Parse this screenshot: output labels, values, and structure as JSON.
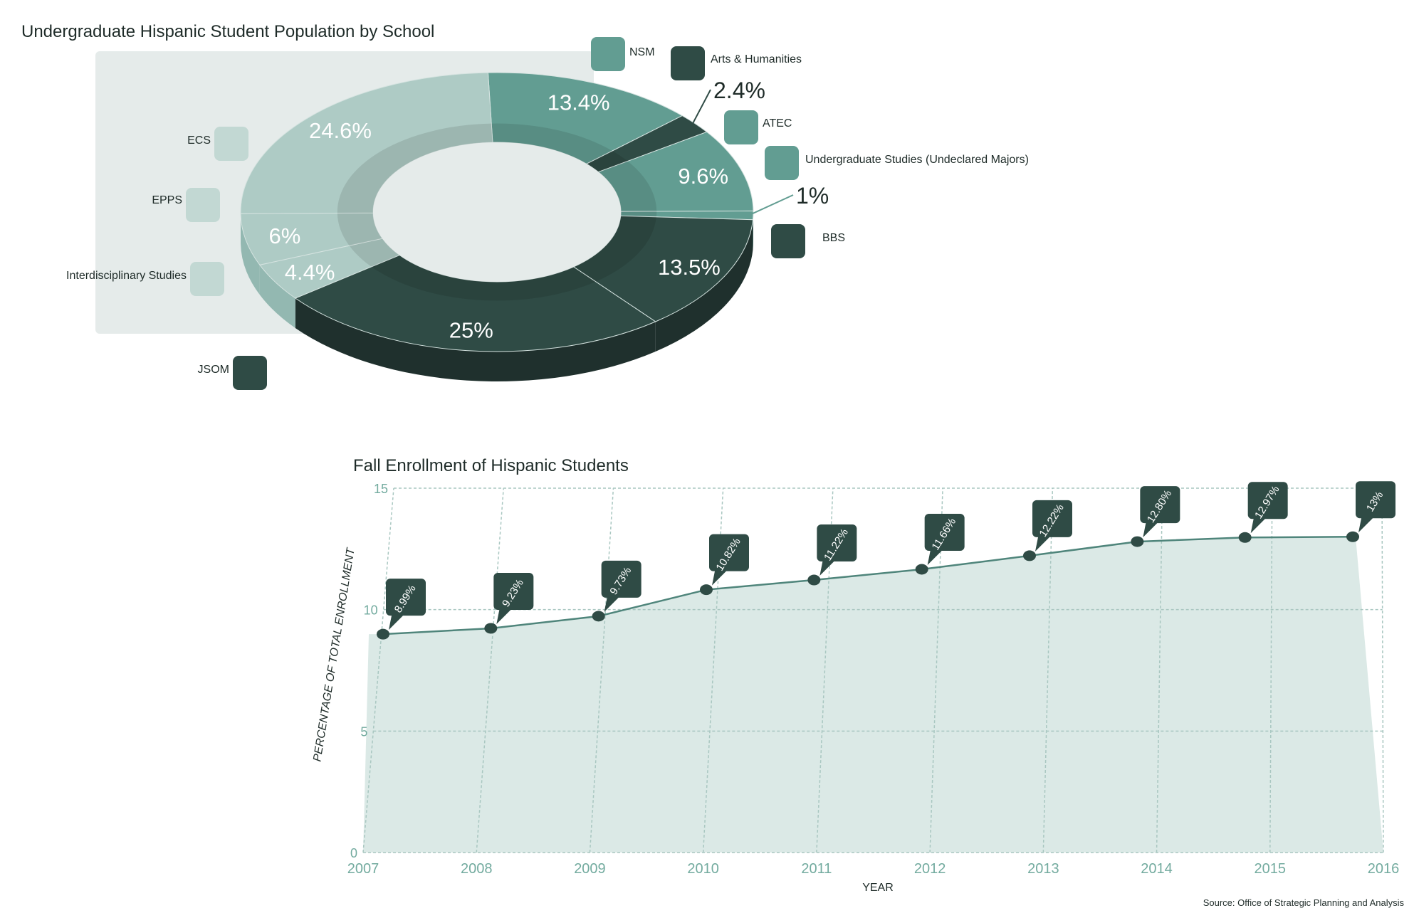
{
  "colors": {
    "dark": "#2f4b45",
    "dark_side": "#1f302d",
    "medium": "#629d92",
    "light": "#aecbc5",
    "lighter": "#c2d8d3",
    "panel": "#e5ebea",
    "area_fill": "#dbe9e6",
    "grid": "#a9c7c1",
    "axis_text": "#73ab9f",
    "text": "#1e2b28"
  },
  "chart_data": [
    {
      "type": "pie",
      "title": "Undergraduate Hispanic Student Population by School",
      "slices": [
        {
          "label": "NSM",
          "value": 13.4,
          "display": "13.4%",
          "tone": "medium"
        },
        {
          "label": "Arts & Humanities",
          "value": 2.4,
          "display": "2.4%",
          "tone": "dark"
        },
        {
          "label": "ATEC",
          "value": 9.6,
          "display": "9.6%",
          "tone": "medium"
        },
        {
          "label": "Undergraduate Studies (Undeclared Majors)",
          "value": 1,
          "display": "1%",
          "tone": "medium"
        },
        {
          "label": "BBS",
          "value": 13.5,
          "display": "13.5%",
          "tone": "dark"
        },
        {
          "label": "JSOM",
          "value": 25,
          "display": "25%",
          "tone": "dark"
        },
        {
          "label": "Interdisciplinary Studies",
          "value": 4.4,
          "display": "4.4%",
          "tone": "light"
        },
        {
          "label": "EPPS",
          "value": 6,
          "display": "6%",
          "tone": "light"
        },
        {
          "label": "ECS",
          "value": 24.6,
          "display": "24.6%",
          "tone": "light"
        }
      ],
      "legend_placement": "around"
    },
    {
      "type": "area",
      "title": "Fall Enrollment of Hispanic Students",
      "xlabel": "YEAR",
      "ylabel": "PERCENTAGE OF TOTAL ENROLLMENT",
      "ylim": [
        0,
        15
      ],
      "yticks": [
        0,
        5,
        10,
        15
      ],
      "xtick_labels": [
        "2007",
        "2008",
        "2009",
        "2010",
        "2011",
        "2012",
        "2013",
        "2014",
        "2015",
        "2016"
      ],
      "series": [
        {
          "x": [
            "2007",
            "2008",
            "2009",
            "2010",
            "2011",
            "2012",
            "2013",
            "2014",
            "2015",
            "2016"
          ],
          "values": [
            8.99,
            9.23,
            9.73,
            10.82,
            11.22,
            11.66,
            12.22,
            12.8,
            12.97,
            13
          ],
          "labels": [
            "8.99%",
            "9.23%",
            "9.73%",
            "10.82%",
            "11.22%",
            "11.66%",
            "12.22%",
            "12.80%",
            "12.97%",
            "13%"
          ]
        }
      ],
      "grid": true
    }
  ],
  "source": "Source: Office of Strategic Planning and Analysis"
}
